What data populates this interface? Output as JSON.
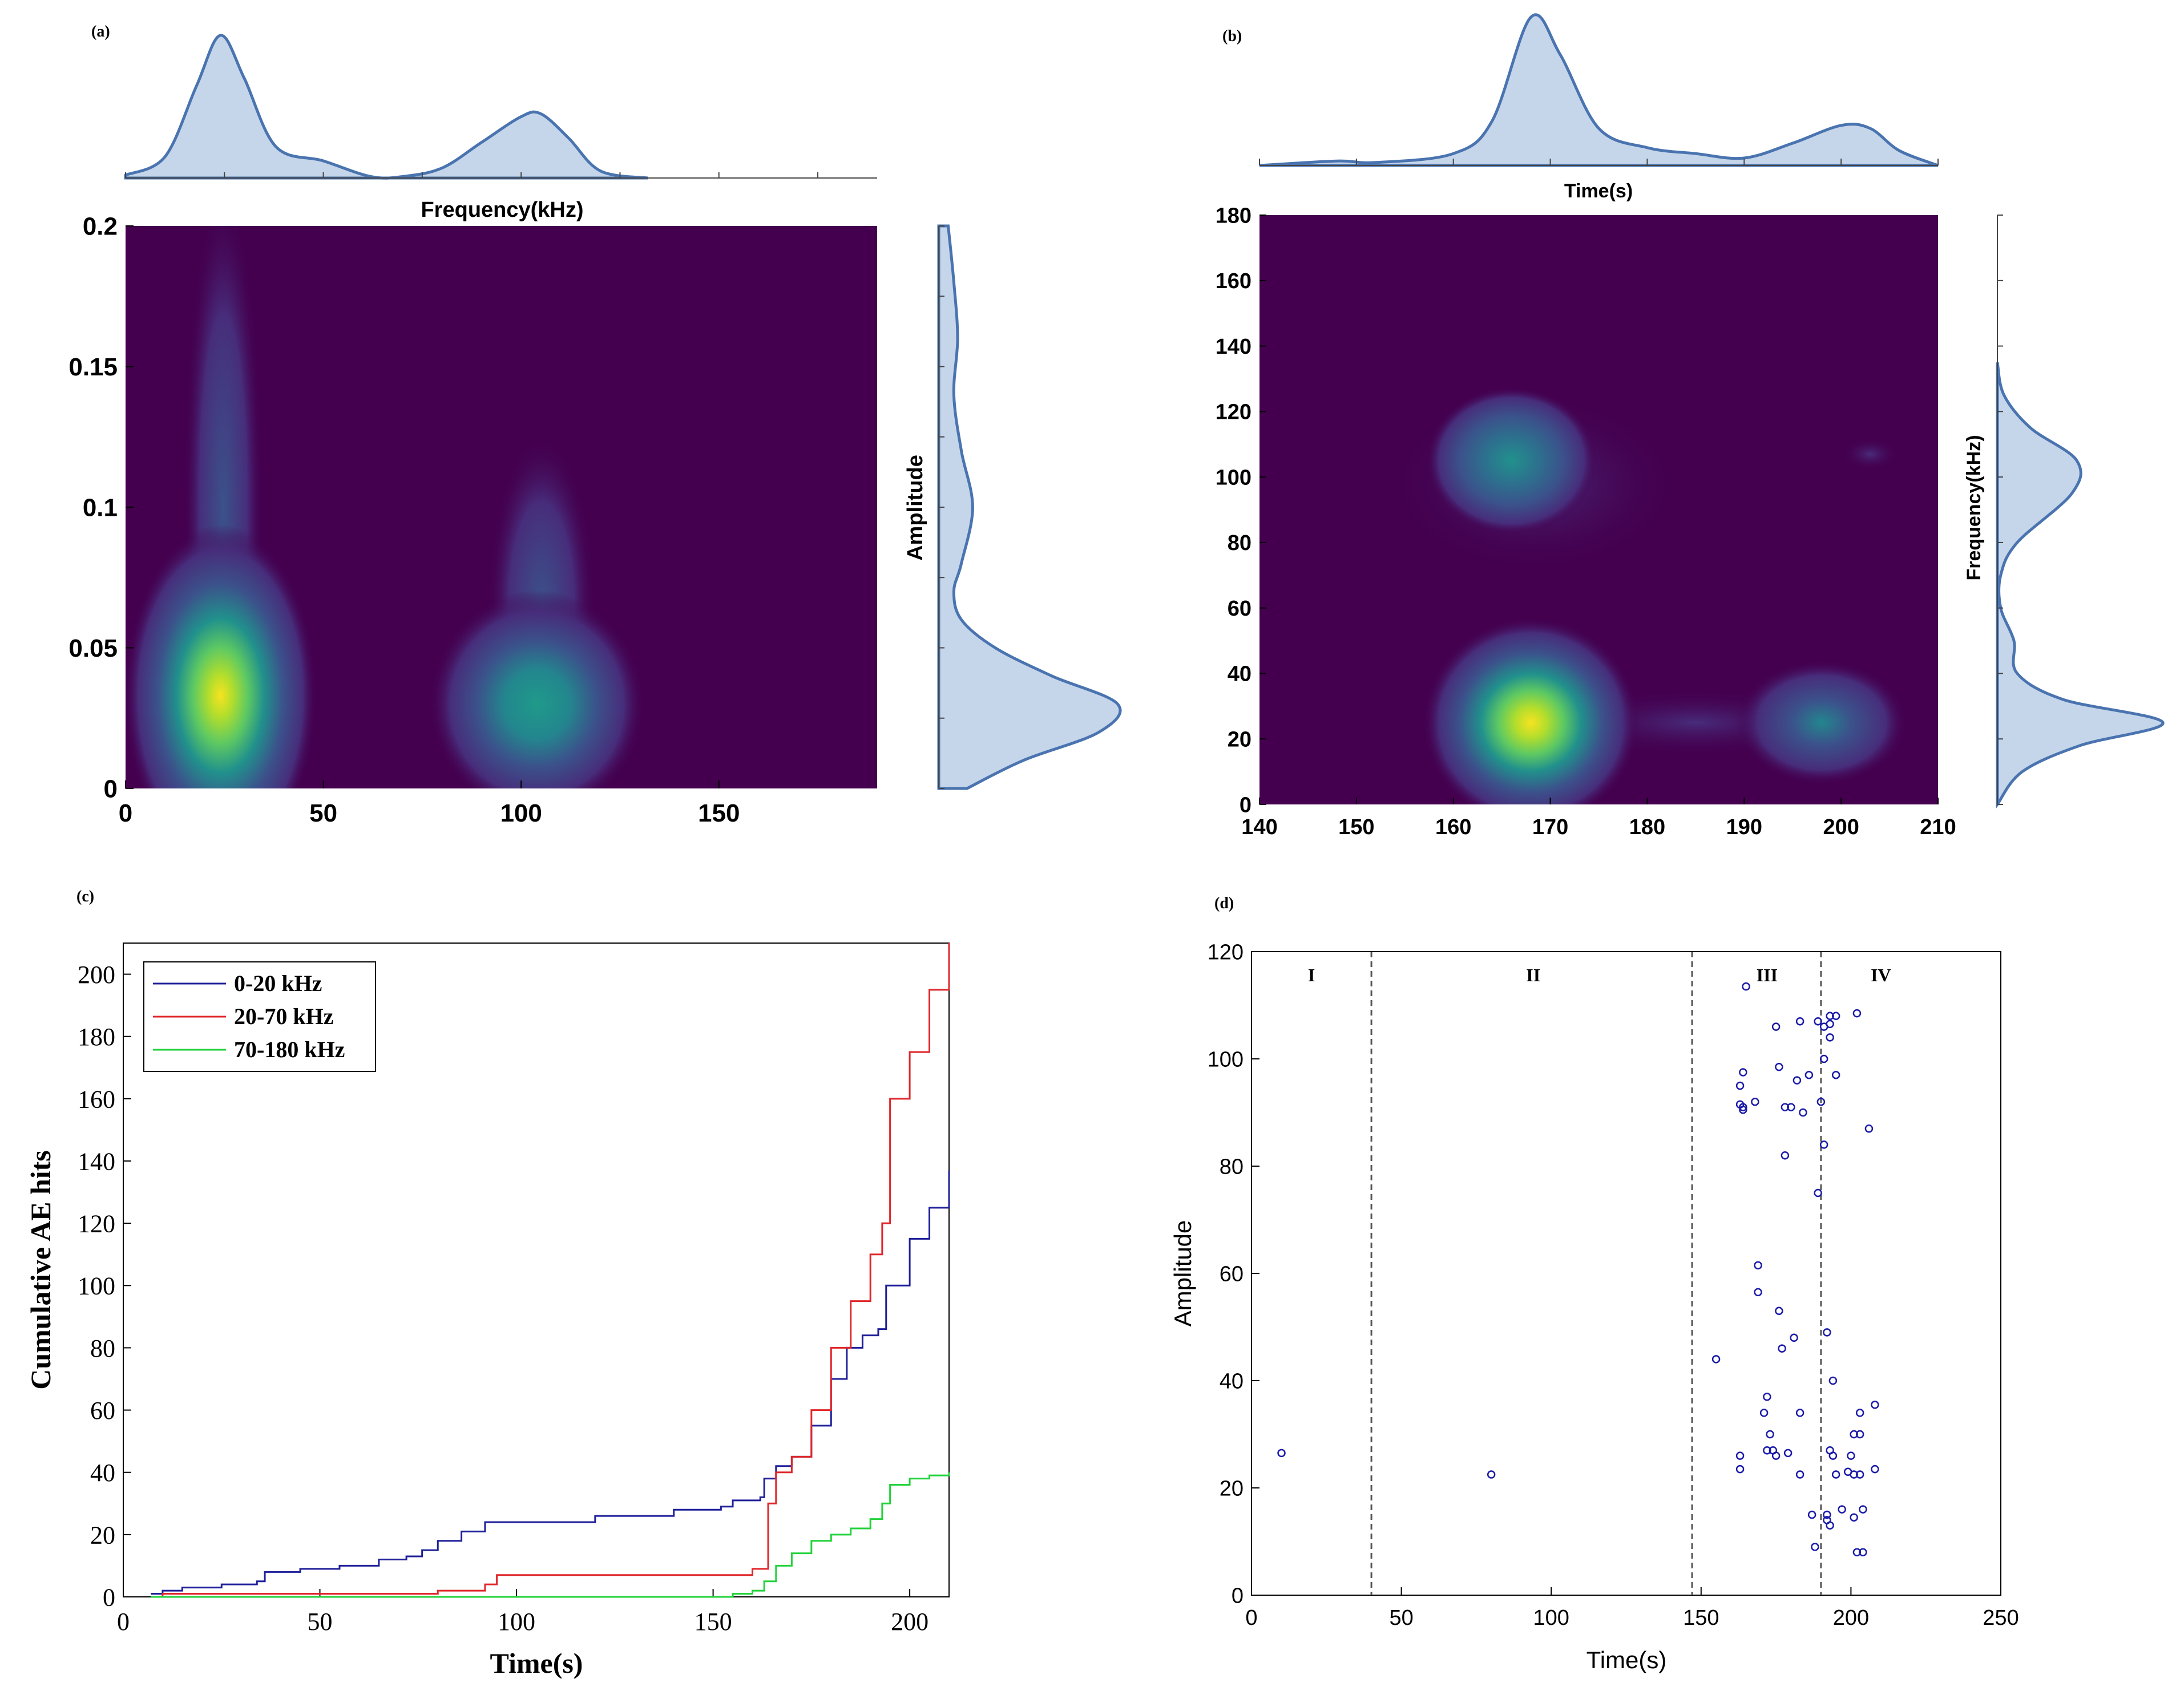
{
  "colors": {
    "kde_fill": "#c6d6ea",
    "kde_line": "#4a74b0",
    "bg_purple": "#44004f",
    "series_blue": "#1f1f9a",
    "series_red": "#e0262a",
    "series_green": "#22d23a",
    "scatter": "#1a1aa8"
  },
  "chart_data": [
    {
      "type": "heatmap",
      "panel_label": "(a)",
      "title": "",
      "xlabel": "Frequency(kHz)",
      "ylabel": "Amplitude",
      "xlim": [
        0,
        190
      ],
      "ylim": [
        0,
        0.2
      ],
      "x_ticks": [
        "0",
        "50",
        "100",
        "150"
      ],
      "y_ticks": [
        "0",
        "0.05",
        "0.1",
        "0.15",
        "0.2"
      ],
      "x_tick_values": [
        0,
        50,
        100,
        150
      ],
      "y_tick_values": [
        0,
        0.05,
        0.1,
        0.15,
        0.2
      ],
      "density_peaks": [
        {
          "x": 24,
          "y": 0.033,
          "relative_density": 1.0
        },
        {
          "x": 104,
          "y": 0.03,
          "relative_density": 0.5
        }
      ],
      "marginal_x": {
        "x": [
          0,
          10,
          18,
          24,
          30,
          38,
          50,
          62,
          70,
          80,
          90,
          100,
          105,
          112,
          120,
          132
        ],
        "density": [
          0.02,
          0.15,
          0.65,
          1.0,
          0.7,
          0.22,
          0.12,
          0.01,
          0.01,
          0.07,
          0.25,
          0.43,
          0.45,
          0.28,
          0.05,
          0.0
        ]
      },
      "marginal_y": {
        "y": [
          0,
          0.01,
          0.02,
          0.03,
          0.04,
          0.05,
          0.06,
          0.07,
          0.08,
          0.1,
          0.12,
          0.14,
          0.16,
          0.18,
          0.2
        ],
        "density": [
          0.15,
          0.45,
          0.85,
          0.95,
          0.6,
          0.3,
          0.12,
          0.08,
          0.12,
          0.18,
          0.12,
          0.08,
          0.1,
          0.08,
          0.05
        ]
      }
    },
    {
      "type": "heatmap",
      "panel_label": "(b)",
      "title": "",
      "xlabel": "Time(s)",
      "ylabel": "Frequency(kHz)",
      "xlim": [
        140,
        210
      ],
      "ylim": [
        0,
        180
      ],
      "x_ticks": [
        "140",
        "150",
        "160",
        "170",
        "180",
        "190",
        "200",
        "210"
      ],
      "y_ticks": [
        "0",
        "20",
        "40",
        "60",
        "80",
        "100",
        "120",
        "140",
        "160",
        "180"
      ],
      "x_tick_values": [
        140,
        150,
        160,
        170,
        180,
        190,
        200,
        210
      ],
      "y_tick_values": [
        0,
        20,
        40,
        60,
        80,
        100,
        120,
        140,
        160,
        180
      ],
      "density_peaks": [
        {
          "x": 168,
          "y": 25,
          "relative_density": 1.0
        },
        {
          "x": 166,
          "y": 105,
          "relative_density": 0.55
        },
        {
          "x": 198,
          "y": 25,
          "relative_density": 0.4
        }
      ],
      "marginal_x": {
        "x": [
          140,
          148,
          152,
          160,
          164,
          168,
          171,
          175,
          180,
          185,
          190,
          195,
          200,
          203,
          206,
          210
        ],
        "density": [
          0.0,
          0.03,
          0.02,
          0.08,
          0.3,
          1.0,
          0.75,
          0.25,
          0.12,
          0.08,
          0.05,
          0.15,
          0.27,
          0.25,
          0.1,
          0.0
        ]
      },
      "marginal_y": {
        "y": [
          0,
          10,
          18,
          25,
          32,
          40,
          50,
          60,
          70,
          80,
          95,
          105,
          115,
          125,
          135
        ],
        "density": [
          0.0,
          0.15,
          0.5,
          1.0,
          0.4,
          0.12,
          0.1,
          0.02,
          0.02,
          0.12,
          0.45,
          0.48,
          0.2,
          0.04,
          0.0
        ]
      }
    },
    {
      "type": "line",
      "panel_label": "(c)",
      "title": "",
      "xlabel": "Time(s)",
      "ylabel": "Cumulative AE hits",
      "xlim": [
        0,
        210
      ],
      "ylim": [
        0,
        210
      ],
      "x_ticks": [
        "0",
        "50",
        "100",
        "150",
        "200"
      ],
      "y_ticks": [
        "0",
        "20",
        "40",
        "60",
        "80",
        "100",
        "120",
        "140",
        "160",
        "180",
        "200"
      ],
      "x_tick_values": [
        0,
        50,
        100,
        150,
        200
      ],
      "y_tick_values": [
        0,
        20,
        40,
        60,
        80,
        100,
        120,
        140,
        160,
        180,
        200
      ],
      "legend_position": "top-left",
      "series": [
        {
          "name": "0-20 kHz",
          "color_key": "series_blue",
          "x": [
            7,
            10,
            15,
            25,
            34,
            36,
            45,
            55,
            65,
            72,
            76,
            80,
            86,
            92,
            100,
            120,
            140,
            152,
            155,
            162,
            163,
            166,
            170,
            175,
            180,
            184,
            188,
            192,
            194,
            200,
            205,
            210
          ],
          "y": [
            1,
            2,
            3,
            4,
            5,
            8,
            9,
            10,
            12,
            13,
            15,
            18,
            21,
            24,
            24,
            26,
            28,
            29,
            31,
            32,
            38,
            42,
            45,
            55,
            70,
            80,
            84,
            86,
            100,
            115,
            125,
            137
          ]
        },
        {
          "name": "20-70 kHz",
          "color_key": "series_red",
          "x": [
            7,
            10,
            50,
            80,
            85,
            92,
            95,
            100,
            120,
            140,
            155,
            160,
            164,
            166,
            170,
            175,
            180,
            185,
            190,
            193,
            195,
            200,
            205,
            210
          ],
          "y": [
            0,
            1,
            1,
            2,
            2,
            4,
            7,
            7,
            7,
            7,
            7,
            9,
            30,
            40,
            45,
            60,
            80,
            95,
            110,
            120,
            160,
            175,
            195,
            210
          ]
        },
        {
          "name": "70-180 kHz",
          "color_key": "series_green",
          "x": [
            7,
            50,
            100,
            150,
            155,
            160,
            163,
            166,
            170,
            175,
            180,
            185,
            190,
            193,
            195,
            200,
            205,
            210
          ],
          "y": [
            0,
            0,
            0,
            0,
            1,
            2,
            5,
            10,
            14,
            18,
            20,
            22,
            25,
            30,
            36,
            38,
            39,
            40
          ]
        }
      ]
    },
    {
      "type": "scatter",
      "panel_label": "(d)",
      "title": "",
      "xlabel": "Time(s)",
      "ylabel": "Amplitude",
      "xlim": [
        0,
        250
      ],
      "ylim": [
        0,
        120
      ],
      "x_ticks": [
        "0",
        "50",
        "100",
        "150",
        "200",
        "250"
      ],
      "y_ticks": [
        "0",
        "20",
        "40",
        "60",
        "80",
        "100",
        "120"
      ],
      "x_tick_values": [
        0,
        50,
        100,
        150,
        200,
        250
      ],
      "y_tick_values": [
        0,
        20,
        40,
        60,
        80,
        100,
        120
      ],
      "stage_dividers": [
        40,
        147,
        190
      ],
      "stage_labels": [
        {
          "text": "I",
          "x": 20
        },
        {
          "text": "II",
          "x": 94
        },
        {
          "text": "III",
          "x": 172
        },
        {
          "text": "IV",
          "x": 210
        }
      ],
      "points": [
        [
          10,
          26.5
        ],
        [
          80,
          22.5
        ],
        [
          155,
          44
        ],
        [
          163,
          26
        ],
        [
          163,
          23.5
        ],
        [
          163,
          91.5
        ],
        [
          163,
          95
        ],
        [
          164,
          90.5
        ],
        [
          164,
          91
        ],
        [
          164,
          97.5
        ],
        [
          165,
          113.5
        ],
        [
          168,
          92
        ],
        [
          169,
          56.5
        ],
        [
          169,
          61.5
        ],
        [
          171,
          34
        ],
        [
          172,
          37
        ],
        [
          172,
          27
        ],
        [
          173,
          30
        ],
        [
          174,
          27
        ],
        [
          175,
          26
        ],
        [
          175,
          106
        ],
        [
          176,
          53
        ],
        [
          176,
          98.5
        ],
        [
          177,
          46
        ],
        [
          178,
          91
        ],
        [
          178,
          82
        ],
        [
          179,
          26.5
        ],
        [
          180,
          91
        ],
        [
          181,
          48
        ],
        [
          182,
          96
        ],
        [
          183,
          107
        ],
        [
          183,
          34
        ],
        [
          183,
          22.5
        ],
        [
          184,
          90
        ],
        [
          186,
          97
        ],
        [
          187,
          15
        ],
        [
          188,
          9
        ],
        [
          189,
          75
        ],
        [
          189,
          107
        ],
        [
          190,
          92
        ],
        [
          191,
          106
        ],
        [
          191,
          100
        ],
        [
          191,
          84
        ],
        [
          192,
          49
        ],
        [
          192,
          14
        ],
        [
          192,
          15
        ],
        [
          193,
          108
        ],
        [
          193,
          104
        ],
        [
          193,
          106.5
        ],
        [
          193,
          13
        ],
        [
          193,
          27
        ],
        [
          194,
          26
        ],
        [
          194,
          40
        ],
        [
          195,
          108
        ],
        [
          195,
          97
        ],
        [
          195,
          22.5
        ],
        [
          197,
          16
        ],
        [
          199,
          23
        ],
        [
          200,
          26
        ],
        [
          201,
          14.5
        ],
        [
          201,
          30
        ],
        [
          201,
          22.5
        ],
        [
          202,
          108.5
        ],
        [
          202,
          8
        ],
        [
          203,
          30
        ],
        [
          203,
          34
        ],
        [
          203,
          22.5
        ],
        [
          204,
          8
        ],
        [
          204,
          16
        ],
        [
          206,
          87
        ],
        [
          208,
          35.5
        ],
        [
          208,
          23.5
        ]
      ]
    }
  ]
}
